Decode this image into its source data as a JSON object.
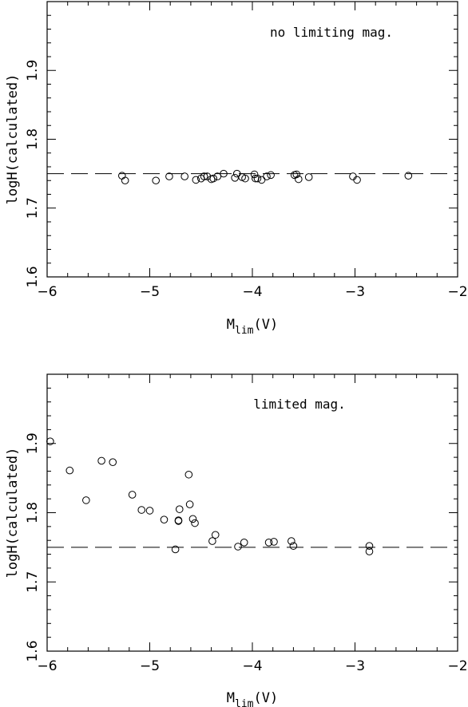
{
  "chart_data": [
    {
      "type": "scatter",
      "annotation": "no limiting mag.",
      "xlabel_main": "M",
      "xlabel_sub": "lim",
      "xlabel_tail": "(V)",
      "ylabel": "logH(calculated)",
      "xlim": [
        -6,
        -2
      ],
      "ylim": [
        1.6,
        2.0
      ],
      "xticks": [
        -6,
        -5,
        -4,
        -3,
        -2
      ],
      "xtick_labels": [
        "−6",
        "−5",
        "−4",
        "−3",
        "−2"
      ],
      "yticks": [
        1.6,
        1.7,
        1.8,
        1.9
      ],
      "ytick_labels": [
        "1.6",
        "1.7",
        "1.8",
        "1.9"
      ],
      "reference_line": 1.75,
      "points": [
        [
          -5.27,
          1.747
        ],
        [
          -5.24,
          1.74
        ],
        [
          -4.94,
          1.74
        ],
        [
          -4.81,
          1.746
        ],
        [
          -4.66,
          1.746
        ],
        [
          -4.55,
          1.741
        ],
        [
          -4.5,
          1.743
        ],
        [
          -4.47,
          1.746
        ],
        [
          -4.44,
          1.746
        ],
        [
          -4.4,
          1.742
        ],
        [
          -4.38,
          1.743
        ],
        [
          -4.34,
          1.746
        ],
        [
          -4.28,
          1.75
        ],
        [
          -4.17,
          1.744
        ],
        [
          -4.15,
          1.75
        ],
        [
          -4.1,
          1.745
        ],
        [
          -4.07,
          1.743
        ],
        [
          -3.98,
          1.749
        ],
        [
          -3.97,
          1.743
        ],
        [
          -3.95,
          1.743
        ],
        [
          -3.91,
          1.741
        ],
        [
          -3.86,
          1.746
        ],
        [
          -3.82,
          1.748
        ],
        [
          -3.59,
          1.748
        ],
        [
          -3.57,
          1.749
        ],
        [
          -3.55,
          1.742
        ],
        [
          -3.45,
          1.745
        ],
        [
          -3.02,
          1.746
        ],
        [
          -2.98,
          1.741
        ],
        [
          -2.48,
          1.747
        ]
      ]
    },
    {
      "type": "scatter",
      "annotation": "limited mag.",
      "xlabel_main": "M",
      "xlabel_sub": "lim",
      "xlabel_tail": "(V)",
      "ylabel": "logH(calculated)",
      "xlim": [
        -6,
        -2
      ],
      "ylim": [
        1.6,
        2.0
      ],
      "xticks": [
        -6,
        -5,
        -4,
        -3,
        -2
      ],
      "xtick_labels": [
        "−6",
        "−5",
        "−4",
        "−3",
        "−2"
      ],
      "yticks": [
        1.6,
        1.7,
        1.8,
        1.9
      ],
      "ytick_labels": [
        "1.6",
        "1.7",
        "1.8",
        "1.9"
      ],
      "reference_line": 1.75,
      "points": [
        [
          -5.97,
          1.903
        ],
        [
          -5.78,
          1.861
        ],
        [
          -5.62,
          1.818
        ],
        [
          -5.47,
          1.875
        ],
        [
          -5.36,
          1.873
        ],
        [
          -5.17,
          1.826
        ],
        [
          -5.08,
          1.804
        ],
        [
          -5.0,
          1.803
        ],
        [
          -4.86,
          1.79
        ],
        [
          -4.75,
          1.747
        ],
        [
          -4.72,
          1.789
        ],
        [
          -4.72,
          1.788
        ],
        [
          -4.71,
          1.805
        ],
        [
          -4.62,
          1.855
        ],
        [
          -4.61,
          1.812
        ],
        [
          -4.58,
          1.791
        ],
        [
          -4.56,
          1.785
        ],
        [
          -4.39,
          1.759
        ],
        [
          -4.36,
          1.768
        ],
        [
          -4.14,
          1.751
        ],
        [
          -4.08,
          1.757
        ],
        [
          -3.84,
          1.757
        ],
        [
          -3.79,
          1.758
        ],
        [
          -3.62,
          1.759
        ],
        [
          -3.6,
          1.752
        ],
        [
          -2.86,
          1.752
        ],
        [
          -2.86,
          1.744
        ]
      ]
    }
  ]
}
